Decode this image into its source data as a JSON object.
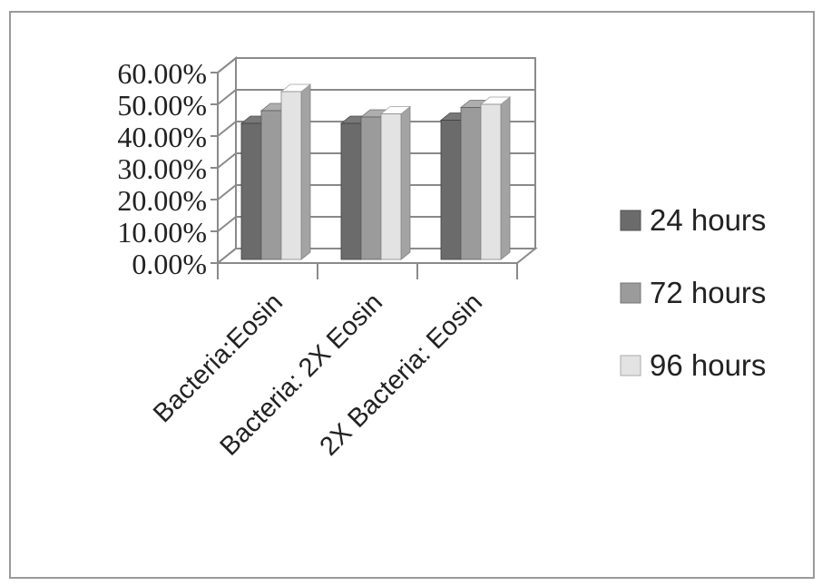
{
  "chart_data": {
    "type": "bar",
    "style": "3d-clustered-column",
    "categories": [
      "Bacteria:Eosin",
      "Bacteria: 2X Eosin",
      "2X Bacteria: Eosin"
    ],
    "series": [
      {
        "name": "24 hours",
        "values": [
          0.44,
          0.44,
          0.45
        ],
        "color": "#6b6b6b"
      },
      {
        "name": "72 hours",
        "values": [
          0.48,
          0.46,
          0.49
        ],
        "color": "#9b9b9b"
      },
      {
        "name": "96 hours",
        "values": [
          0.54,
          0.47,
          0.5
        ],
        "color": "#e3e3e3"
      }
    ],
    "y_ticks": [
      "0.00%",
      "10.00%",
      "20.00%",
      "30.00%",
      "40.00%",
      "50.00%",
      "60.00%"
    ],
    "ylim": [
      0,
      0.6
    ],
    "grid": true,
    "legend_position": "right",
    "title": "",
    "xlabel": "",
    "ylabel": ""
  }
}
